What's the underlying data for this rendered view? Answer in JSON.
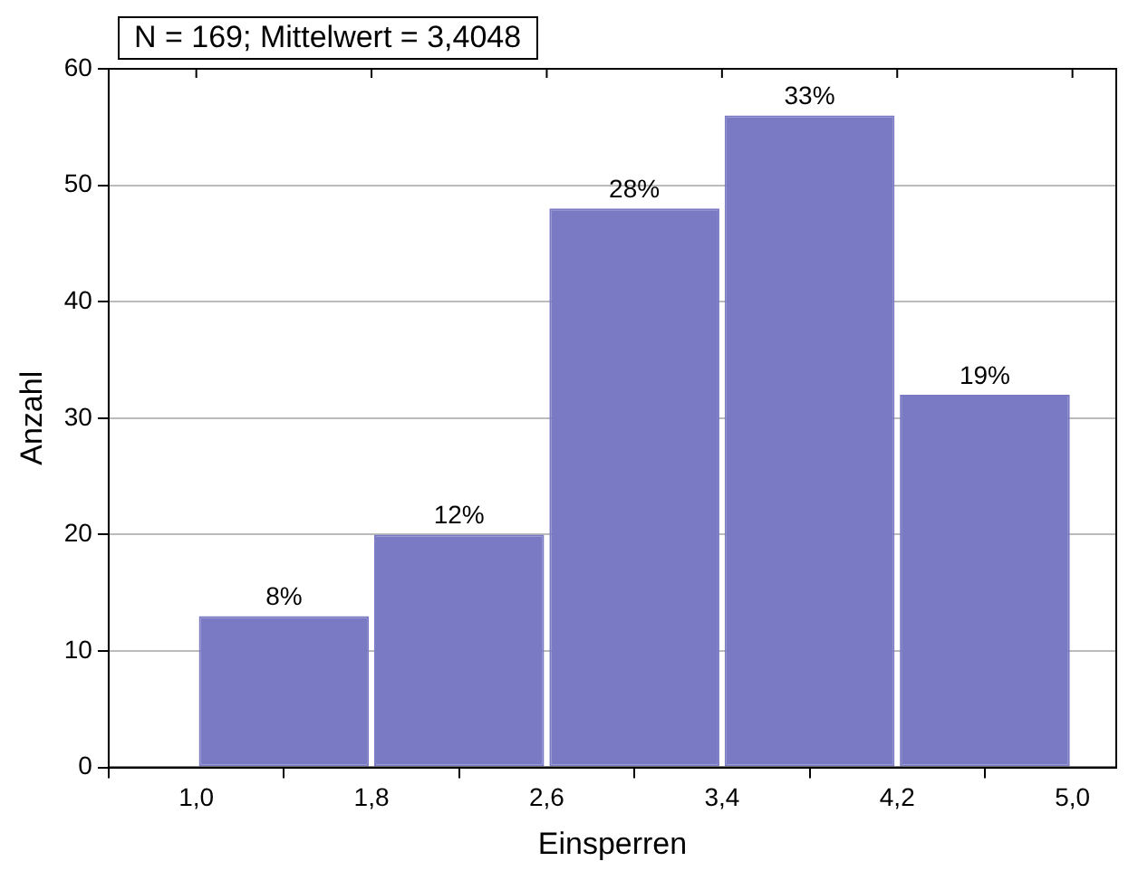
{
  "chart_data": {
    "type": "histogram",
    "title": "N = 169; Mittelwert = 3,4048",
    "xlabel": "Einsperren",
    "ylabel": "Anzahl",
    "bins": [
      1.0,
      1.8,
      2.6,
      3.4,
      4.2,
      5.0
    ],
    "values": [
      13,
      20,
      48,
      56,
      32
    ],
    "annotations": [
      {
        "text": "8%",
        "x": 1.4,
        "y": 13
      },
      {
        "text": "12%",
        "x": 2.2,
        "y": 20
      },
      {
        "text": "28%",
        "x": 3.0,
        "y": 48
      },
      {
        "text": "33%",
        "x": 3.8,
        "y": 56
      },
      {
        "text": "19%",
        "x": 4.6,
        "y": 32
      }
    ],
    "color": "#7a7ac4",
    "xlim": [
      0.6,
      5.2
    ],
    "xticks": [
      {
        "value": 1.0,
        "label": "1,0"
      },
      {
        "value": 1.8,
        "label": "1,8"
      },
      {
        "value": 2.6,
        "label": "2,6"
      },
      {
        "value": 3.4,
        "label": "3,4"
      },
      {
        "value": 4.2,
        "label": "4,2"
      },
      {
        "value": 5.0,
        "label": "5,0"
      }
    ],
    "ylim": [
      0,
      60
    ],
    "yticks": [
      0,
      10,
      20,
      30,
      40,
      50,
      60
    ],
    "grid": "y",
    "legend": false
  }
}
